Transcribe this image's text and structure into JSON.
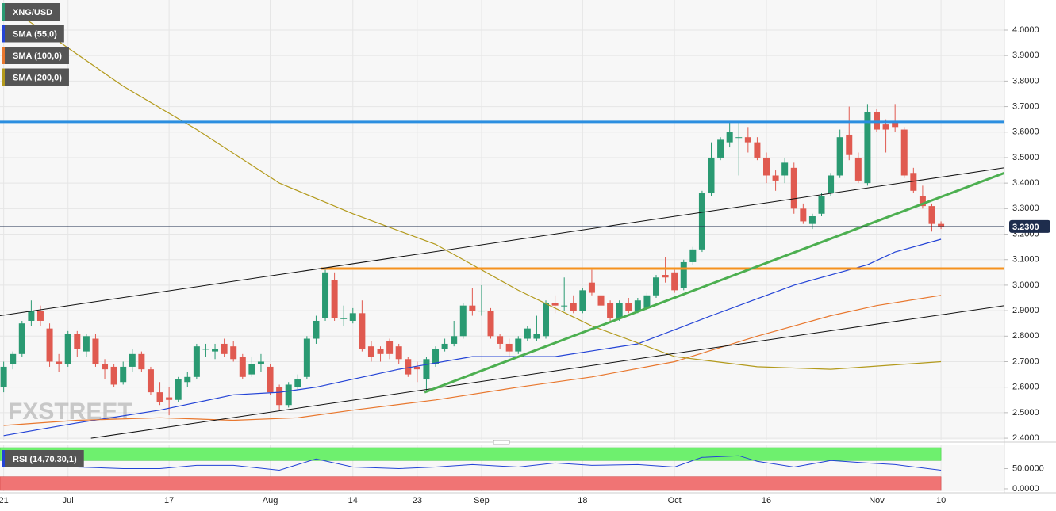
{
  "chart_data": [
    {
      "type": "candlestick",
      "title": "XNG/USD",
      "watermark": "FXSTREET",
      "categories": [
        "21",
        null,
        null,
        null,
        null,
        null,
        null,
        "Jul",
        null,
        null,
        null,
        null,
        null,
        null,
        null,
        null,
        null,
        null,
        "17",
        null,
        null,
        null,
        null,
        null,
        null,
        null,
        null,
        null,
        null,
        "Aug",
        null,
        null,
        null,
        null,
        null,
        null,
        null,
        null,
        "14",
        null,
        null,
        null,
        null,
        null,
        null,
        "23",
        null,
        null,
        null,
        null,
        null,
        null,
        "Sep",
        null,
        null,
        null,
        null,
        null,
        null,
        null,
        null,
        null,
        null,
        "18",
        null,
        null,
        null,
        null,
        null,
        null,
        null,
        null,
        null,
        "Oct",
        null,
        null,
        null,
        null,
        null,
        null,
        null,
        null,
        null,
        "16",
        null,
        null,
        null,
        null,
        null,
        null,
        null,
        null,
        null,
        null,
        null,
        "Nov",
        null,
        null,
        null,
        null,
        null,
        null,
        "10"
      ],
      "xlim": [
        -0.4,
        108.9
      ],
      "ylim": [
        2.394,
        4.118
      ],
      "yticks": [
        {
          "value": 2.4,
          "label": "2.4000"
        },
        {
          "value": 2.5,
          "label": "2.5000"
        },
        {
          "value": 2.6,
          "label": "2.6000"
        },
        {
          "value": 2.7,
          "label": "2.7000"
        },
        {
          "value": 2.8,
          "label": "2.8000"
        },
        {
          "value": 2.9,
          "label": "2.9000"
        },
        {
          "value": 3,
          "label": "3.0000"
        },
        {
          "value": 3.1,
          "label": "3.1000"
        },
        {
          "value": 3.2,
          "label": "3.2000"
        },
        {
          "value": 3.3,
          "label": "3.3000"
        },
        {
          "value": 3.4,
          "label": "3.4000"
        },
        {
          "value": 3.5,
          "label": "3.5000"
        },
        {
          "value": 3.6,
          "label": "3.6000"
        },
        {
          "value": 3.7,
          "label": "3.7000"
        },
        {
          "value": 3.8,
          "label": "3.8000"
        },
        {
          "value": 3.9,
          "label": "3.9000"
        },
        {
          "value": 4,
          "label": "4.0000"
        }
      ],
      "grid": true,
      "up_color": "#2a9a72",
      "down_color": "#e05a50",
      "open": [
        2.6,
        2.69,
        2.73,
        2.86,
        2.9,
        2.83,
        2.7,
        2.69,
        2.81,
        2.74,
        2.79,
        2.69,
        2.68,
        2.62,
        2.68,
        2.73,
        2.67,
        2.58,
        2.56,
        2.55,
        2.62,
        2.64,
        2.75,
        2.74,
        2.77,
        2.76,
        2.72,
        2.65,
        2.69,
        2.68,
        2.6,
        2.53,
        2.6,
        2.64,
        2.79,
        2.87,
        3.02,
        2.87,
        2.86,
        2.89,
        2.76,
        2.75,
        2.78,
        2.76,
        2.71,
        2.68,
        2.63,
        2.69,
        2.75,
        2.77,
        2.8,
        2.92,
        2.9,
        2.9,
        2.8,
        2.77,
        2.74,
        2.79,
        2.79,
        2.8,
        2.93,
        2.92,
        2.93,
        2.9,
        3.01,
        2.96,
        2.93,
        2.87,
        2.93,
        2.9,
        2.91,
        2.96,
        3.04,
        3.05,
        2.99,
        3.09,
        3.14,
        3.36,
        3.5,
        3.56,
        3.58,
        3.58,
        3.56,
        3.5,
        3.43,
        3.43,
        3.46,
        3.3,
        3.24,
        3.28,
        3.36,
        3.43,
        3.59,
        3.5,
        3.4,
        3.68,
        3.63,
        3.64,
        3.61,
        3.44,
        3.35,
        3.31,
        3.24
      ],
      "high": [
        2.7,
        2.74,
        2.86,
        2.94,
        2.92,
        2.85,
        2.73,
        2.82,
        2.82,
        2.81,
        2.81,
        2.71,
        2.69,
        2.7,
        2.75,
        2.74,
        2.68,
        2.62,
        2.6,
        2.64,
        2.66,
        2.77,
        2.77,
        2.77,
        2.79,
        2.78,
        2.73,
        2.72,
        2.73,
        2.69,
        2.61,
        2.62,
        2.65,
        2.8,
        2.88,
        3.06,
        3.05,
        2.92,
        2.91,
        2.94,
        2.78,
        2.76,
        2.79,
        2.77,
        2.72,
        2.7,
        2.72,
        2.76,
        2.79,
        2.86,
        2.93,
        2.99,
        3.0,
        2.91,
        2.81,
        2.79,
        2.8,
        2.84,
        2.88,
        2.94,
        2.96,
        3.03,
        2.96,
        2.99,
        3.06,
        2.98,
        2.94,
        2.94,
        2.95,
        2.95,
        2.97,
        3.04,
        3.11,
        3.06,
        3.1,
        3.15,
        3.37,
        3.56,
        3.58,
        3.64,
        3.64,
        3.62,
        3.58,
        3.52,
        3.45,
        3.5,
        3.48,
        3.32,
        3.28,
        3.36,
        3.44,
        3.61,
        3.7,
        3.52,
        3.71,
        3.69,
        3.65,
        3.71,
        3.62,
        3.46,
        3.39,
        3.32,
        3.25
      ],
      "low": [
        2.58,
        2.67,
        2.72,
        2.84,
        2.84,
        2.68,
        2.66,
        2.68,
        2.72,
        2.72,
        2.68,
        2.63,
        2.6,
        2.61,
        2.66,
        2.66,
        2.57,
        2.53,
        2.49,
        2.54,
        2.6,
        2.63,
        2.72,
        2.71,
        2.72,
        2.7,
        2.63,
        2.64,
        2.66,
        2.57,
        2.51,
        2.52,
        2.59,
        2.63,
        2.77,
        2.86,
        2.86,
        2.84,
        2.85,
        2.74,
        2.7,
        2.7,
        2.71,
        2.69,
        2.64,
        2.62,
        2.58,
        2.68,
        2.74,
        2.76,
        2.79,
        2.88,
        2.88,
        2.79,
        2.75,
        2.72,
        2.73,
        2.78,
        2.78,
        2.79,
        2.89,
        2.9,
        2.89,
        2.89,
        2.96,
        2.91,
        2.86,
        2.86,
        2.89,
        2.89,
        2.9,
        2.95,
        3.01,
        2.97,
        2.98,
        3.08,
        3.13,
        3.35,
        3.49,
        3.54,
        3.43,
        3.52,
        3.49,
        3.4,
        3.37,
        3.4,
        3.28,
        3.24,
        3.22,
        3.27,
        3.35,
        3.42,
        3.49,
        3.4,
        3.39,
        3.6,
        3.52,
        3.6,
        3.42,
        3.36,
        3.3,
        3.21,
        3.22
      ],
      "close": [
        2.68,
        2.73,
        2.85,
        2.9,
        2.86,
        2.7,
        2.69,
        2.81,
        2.75,
        2.8,
        2.69,
        2.67,
        2.61,
        2.68,
        2.73,
        2.67,
        2.58,
        2.54,
        2.55,
        2.63,
        2.64,
        2.76,
        2.75,
        2.75,
        2.73,
        2.71,
        2.64,
        2.69,
        2.7,
        2.58,
        2.53,
        2.61,
        2.63,
        2.79,
        2.86,
        3.05,
        2.87,
        2.87,
        2.89,
        2.75,
        2.72,
        2.73,
        2.73,
        2.71,
        2.65,
        2.67,
        2.71,
        2.75,
        2.77,
        2.8,
        2.92,
        2.9,
        2.9,
        2.8,
        2.77,
        2.74,
        2.79,
        2.83,
        2.81,
        2.93,
        2.92,
        2.92,
        2.9,
        2.98,
        2.97,
        2.92,
        2.87,
        2.93,
        2.9,
        2.94,
        2.96,
        3.03,
        3.03,
        2.98,
        3.09,
        3.14,
        3.36,
        3.5,
        3.57,
        3.6,
        3.58,
        3.56,
        3.5,
        3.43,
        3.41,
        3.48,
        3.3,
        3.25,
        3.27,
        3.35,
        3.43,
        3.58,
        3.51,
        3.41,
        3.68,
        3.61,
        3.61,
        3.62,
        3.43,
        3.37,
        3.31,
        3.24,
        3.23
      ],
      "series": [
        {
          "name": "SMA (55,0)",
          "color": "#2343d6",
          "x": [
            0,
            8,
            17,
            25,
            30,
            34,
            43,
            51,
            60,
            69,
            77,
            86,
            94,
            97,
            102
          ],
          "values": [
            2.41,
            2.46,
            2.51,
            2.57,
            2.58,
            2.6,
            2.67,
            2.72,
            2.72,
            2.77,
            2.88,
            3.0,
            3.08,
            3.13,
            3.18
          ]
        },
        {
          "name": "SMA (100,0)",
          "color": "#e8772e",
          "x": [
            0,
            8,
            17,
            25,
            32,
            38,
            47,
            56,
            64,
            73,
            82,
            90,
            95,
            102
          ],
          "values": [
            2.45,
            2.47,
            2.48,
            2.47,
            2.48,
            2.51,
            2.55,
            2.6,
            2.64,
            2.7,
            2.8,
            2.88,
            2.92,
            2.96
          ]
        },
        {
          "name": "SMA (200,0)",
          "color": "#b39a1c",
          "x": [
            0,
            5,
            13,
            21,
            30,
            38,
            47,
            56,
            64,
            73,
            82,
            90,
            102
          ],
          "values": [
            4.1,
            3.98,
            3.78,
            3.61,
            3.4,
            3.28,
            3.16,
            2.98,
            2.84,
            2.72,
            2.68,
            2.67,
            2.7
          ]
        }
      ],
      "lines": [
        {
          "color": "#2b8ee0",
          "x": [
            -0.4,
            108.9
          ],
          "values": [
            3.64,
            3.64
          ]
        },
        {
          "color": "#f5921e",
          "x": [
            34.5,
            108.9
          ],
          "values": [
            3.065,
            3.065
          ]
        },
        {
          "color": "#111111",
          "x": [
            -0.4,
            108.9
          ],
          "values": [
            2.88,
            3.46
          ]
        },
        {
          "color": "#111111",
          "x": [
            9.5,
            108.9
          ],
          "values": [
            2.4,
            2.92
          ]
        },
        {
          "color": "#4caf50",
          "x": [
            45.8,
            108.9
          ],
          "values": [
            2.58,
            3.44
          ]
        }
      ],
      "last_price": {
        "value": 3.23,
        "label": "3.2300"
      }
    },
    {
      "type": "rsi",
      "title": "RSI (14,70,30,1)",
      "color": "#2343d6",
      "x": [
        0,
        4,
        8,
        13,
        17,
        21,
        25,
        30,
        34,
        38,
        43,
        47,
        51,
        56,
        60,
        64,
        69,
        73,
        76,
        80,
        82,
        86,
        90,
        94,
        97,
        102
      ],
      "values": [
        64,
        60,
        54,
        50,
        50,
        58,
        58,
        46,
        74,
        54,
        50,
        54,
        60,
        54,
        64,
        58,
        60,
        54,
        78,
        82,
        68,
        54,
        70,
        64,
        60,
        46
      ],
      "ylim": [
        -4,
        106
      ],
      "yticks": [
        {
          "value": 50,
          "label": "50.0000"
        },
        {
          "value": 0,
          "label": "0.0000"
        }
      ],
      "overbought": 70,
      "oversold": 30,
      "upper_color": "#6ef06e",
      "lower_color": "#f07474"
    }
  ]
}
